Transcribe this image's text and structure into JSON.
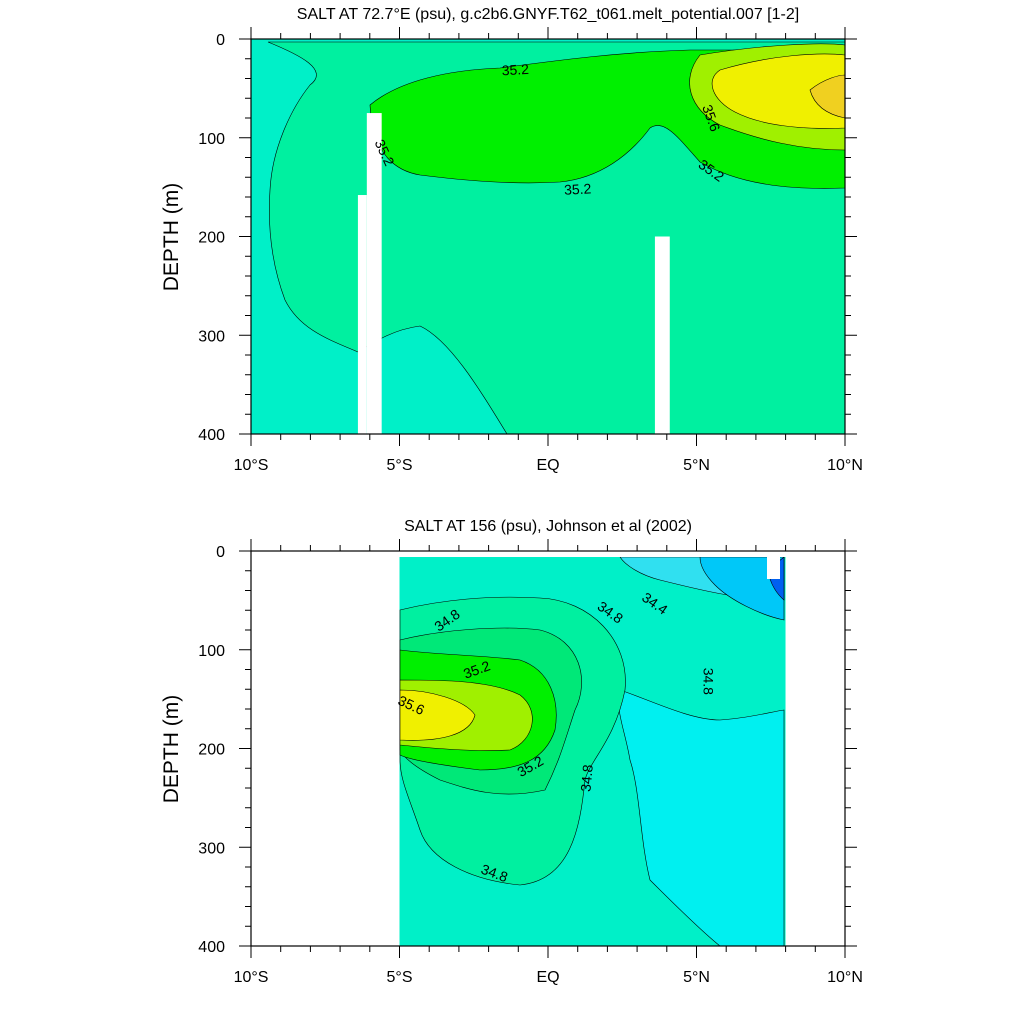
{
  "colors": {
    "teal_low": "#00f0c8",
    "aquamarine": "#00f0a0",
    "green_mid": "#00e878",
    "green_bright": "#00f000",
    "yellowgreen": "#a0f000",
    "yellow": "#f0f000",
    "gold": "#f0d020",
    "cyan": "#00f0f0",
    "light_cyan": "#30e0f0",
    "sky": "#00c8f8",
    "blue": "#0060f0",
    "dark_blue": "#0000c0",
    "contour_line": "#000000",
    "missing": "#ffffff"
  },
  "chart_data": [
    {
      "type": "contour",
      "title": "SALT AT  72.7°E (psu), g.c2b6.GNYF.T62_t061.melt_potential.007 [1-2]",
      "ylabel": "DEPTH (m)",
      "xlabel": "",
      "xlim": [
        -10,
        10
      ],
      "ylim": [
        400,
        0
      ],
      "x_ticks": [
        {
          "value": -10,
          "label": "10°S"
        },
        {
          "value": -5,
          "label": "5°S"
        },
        {
          "value": 0,
          "label": "EQ"
        },
        {
          "value": 5,
          "label": "5°N"
        },
        {
          "value": 10,
          "label": "10°N"
        }
      ],
      "y_ticks": [
        {
          "value": 0,
          "label": "0"
        },
        {
          "value": 100,
          "label": "100"
        },
        {
          "value": 200,
          "label": "200"
        },
        {
          "value": 300,
          "label": "300"
        },
        {
          "value": 400,
          "label": "400"
        }
      ],
      "units": "psu",
      "contour_interval": 0.1,
      "contour_labels": [
        {
          "text": "35.2",
          "x": -1.1,
          "y": 31,
          "angle": -3
        },
        {
          "text": "35.2",
          "x": -5.5,
          "y": 115,
          "angle": 65
        },
        {
          "text": "35.2",
          "x": 1.0,
          "y": 152,
          "angle": -3
        },
        {
          "text": "35.6",
          "x": 5.5,
          "y": 80,
          "angle": 70
        },
        {
          "text": "35.2",
          "x": 5.5,
          "y": 133,
          "angle": 35
        }
      ],
      "missing_data_columns": [
        {
          "lon": [
            -6.4,
            -6.1
          ],
          "depth": [
            158,
            400
          ]
        },
        {
          "lon": [
            -6.1,
            -5.6
          ],
          "depth": [
            75,
            400
          ]
        },
        {
          "lon": [
            3.6,
            4.1
          ],
          "depth": [
            200,
            400
          ]
        }
      ]
    },
    {
      "type": "contour",
      "title": "SALT AT 156 (psu), Johnson et al (2002)",
      "ylabel": "DEPTH (m)",
      "xlabel": "",
      "xlim": [
        -10,
        10
      ],
      "ylim": [
        400,
        0
      ],
      "x_ticks": [
        {
          "value": -10,
          "label": "10°S"
        },
        {
          "value": -5,
          "label": "5°S"
        },
        {
          "value": 0,
          "label": "EQ"
        },
        {
          "value": 5,
          "label": "5°N"
        },
        {
          "value": 10,
          "label": "10°N"
        }
      ],
      "y_ticks": [
        {
          "value": 0,
          "label": "0"
        },
        {
          "value": 100,
          "label": "100"
        },
        {
          "value": 200,
          "label": "200"
        },
        {
          "value": 300,
          "label": "300"
        },
        {
          "value": 400,
          "label": "400"
        }
      ],
      "units": "psu",
      "contour_interval": 0.1,
      "data_extent_lon": [
        -5,
        8
      ],
      "contour_labels": [
        {
          "text": "34.8",
          "x": -3.4,
          "y": 70,
          "angle": -35
        },
        {
          "text": "34.8",
          "x": 2.1,
          "y": 62,
          "angle": 35
        },
        {
          "text": "34.4",
          "x": 3.6,
          "y": 53,
          "angle": 35
        },
        {
          "text": "35.2",
          "x": -2.4,
          "y": 120,
          "angle": -20
        },
        {
          "text": "34.8",
          "x": 5.4,
          "y": 132,
          "angle": 90
        },
        {
          "text": "35.6",
          "x": -4.6,
          "y": 156,
          "angle": 25
        },
        {
          "text": "35.2",
          "x": -0.6,
          "y": 218,
          "angle": -30
        },
        {
          "text": "34.8",
          "x": 1.3,
          "y": 230,
          "angle": -85
        },
        {
          "text": "34.8",
          "x": -1.8,
          "y": 326,
          "angle": 20
        }
      ]
    }
  ]
}
